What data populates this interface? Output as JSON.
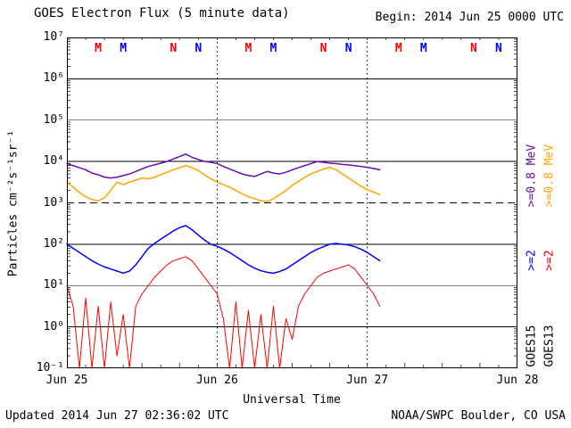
{
  "header": {
    "title": "GOES Electron Flux (5 minute data)",
    "begin_label": "Begin: 2014 Jun 25 0000 UTC"
  },
  "footer": {
    "updated": "Updated 2014 Jun 27 02:36:02 UTC",
    "credit": "NOAA/SWPC Boulder, CO USA"
  },
  "axes": {
    "y_label": "Particles cm⁻²s⁻¹sr⁻¹",
    "x_label": "Universal Time"
  },
  "colors": {
    "goes15_e08": "#6a0dad",
    "goes13_e08": "#ffa500",
    "goes15_e2": "#0000ff",
    "goes13_e2": "#ff0000",
    "axis": "#000000"
  },
  "chart_data": {
    "type": "line",
    "title": "GOES Electron Flux (5 minute data)",
    "begin": "2014 Jun 25 0000 UTC",
    "updated": "2014 Jun 27 02:36:02 UTC",
    "xlabel": "Universal Time",
    "ylabel": "Particles cm⁻²s⁻¹sr⁻¹",
    "y_scale": "log10",
    "x_hours_range": [
      0,
      72
    ],
    "ylog_range": [
      -1,
      7
    ],
    "grid": "decade horizontal solid lines; dashed alert threshold at 1e3; dotted vertical day boundaries",
    "legend_position": "right margin, rotated",
    "y_tick_exponents": [
      -1,
      0,
      1,
      2,
      3,
      4,
      5,
      6,
      7
    ],
    "y_tick_labels": [
      "10⁻¹",
      "10⁰",
      "10¹",
      "10²",
      "10³",
      "10⁴",
      "10⁵",
      "10⁶",
      "10⁷"
    ],
    "x_ticks": [
      {
        "hour": 0,
        "label": "Jun 25"
      },
      {
        "hour": 24,
        "label": "Jun 26"
      },
      {
        "hour": 48,
        "label": "Jun 27"
      },
      {
        "hour": 72,
        "label": "Jun 28"
      }
    ],
    "threshold_log": 3,
    "day_boundaries_hours": [
      24,
      48
    ],
    "x_hours": [
      0,
      1,
      2,
      3,
      4,
      5,
      6,
      7,
      8,
      9,
      10,
      11,
      12,
      13,
      14,
      15,
      16,
      17,
      18,
      19,
      20,
      21,
      22,
      23,
      24,
      25,
      26,
      27,
      28,
      29,
      30,
      31,
      32,
      33,
      34,
      35,
      36,
      37,
      38,
      39,
      40,
      41,
      42,
      43,
      44,
      45,
      46,
      47,
      48,
      49,
      50
    ],
    "series": [
      {
        "key": "goes15-ge08mev",
        "name": "GOES15 >=0.8 MeV",
        "color": "#6a0dad",
        "width": 1.5,
        "log_values": [
          3.95,
          3.9,
          3.85,
          3.8,
          3.72,
          3.68,
          3.62,
          3.6,
          3.62,
          3.66,
          3.7,
          3.76,
          3.82,
          3.88,
          3.92,
          3.96,
          4.0,
          4.06,
          4.12,
          4.18,
          4.1,
          4.05,
          4.0,
          3.98,
          3.95,
          3.88,
          3.82,
          3.76,
          3.7,
          3.66,
          3.64,
          3.7,
          3.76,
          3.72,
          3.7,
          3.74,
          3.8,
          3.85,
          3.9,
          3.95,
          4.0,
          3.98,
          3.96,
          3.95,
          3.93,
          3.92,
          3.9,
          3.88,
          3.86,
          3.83,
          3.8
        ]
      },
      {
        "key": "goes13-ge08mev",
        "name": "GOES13 >=0.8 MeV",
        "color": "#ffa500",
        "width": 1.5,
        "log_values": [
          3.5,
          3.38,
          3.25,
          3.15,
          3.08,
          3.05,
          3.12,
          3.3,
          3.5,
          3.44,
          3.5,
          3.55,
          3.6,
          3.58,
          3.62,
          3.68,
          3.74,
          3.8,
          3.85,
          3.9,
          3.85,
          3.78,
          3.68,
          3.58,
          3.5,
          3.44,
          3.38,
          3.3,
          3.22,
          3.15,
          3.1,
          3.05,
          3.03,
          3.1,
          3.2,
          3.3,
          3.42,
          3.52,
          3.62,
          3.7,
          3.76,
          3.82,
          3.86,
          3.8,
          3.7,
          3.6,
          3.5,
          3.4,
          3.32,
          3.26,
          3.2
        ]
      },
      {
        "key": "goes15-ge2mev",
        "name": "GOES15 >=2 MeV",
        "color": "#0000ff",
        "width": 1.5,
        "log_values": [
          2.0,
          1.9,
          1.8,
          1.7,
          1.6,
          1.52,
          1.45,
          1.4,
          1.35,
          1.3,
          1.35,
          1.5,
          1.7,
          1.9,
          2.02,
          2.12,
          2.22,
          2.32,
          2.4,
          2.45,
          2.35,
          2.22,
          2.1,
          2.0,
          1.95,
          1.88,
          1.8,
          1.7,
          1.6,
          1.5,
          1.42,
          1.36,
          1.32,
          1.3,
          1.34,
          1.4,
          1.5,
          1.6,
          1.7,
          1.8,
          1.88,
          1.94,
          2.0,
          2.02,
          2.0,
          1.98,
          1.94,
          1.88,
          1.8,
          1.7,
          1.6
        ]
      },
      {
        "key": "goes13-ge2mev",
        "name": "GOES13 >=2 MeV",
        "color": "#ff0000",
        "width": 1.0,
        "log_values": [
          1.0,
          0.5,
          -1.0,
          0.7,
          -1.0,
          0.5,
          -1.0,
          0.6,
          -0.7,
          0.3,
          -1.0,
          0.5,
          0.8,
          1.0,
          1.2,
          1.35,
          1.5,
          1.6,
          1.65,
          1.7,
          1.6,
          1.4,
          1.2,
          1.0,
          0.8,
          0.2,
          -1.0,
          0.6,
          -1.0,
          0.4,
          -1.0,
          0.3,
          -1.0,
          0.5,
          -1.0,
          0.2,
          -0.3,
          0.5,
          0.8,
          1.0,
          1.2,
          1.3,
          1.35,
          1.4,
          1.45,
          1.5,
          1.4,
          1.2,
          1.0,
          0.8,
          0.5
        ]
      }
    ],
    "markers": [
      {
        "hour": 5,
        "label": "M",
        "satellite": "GOES13",
        "color": "#ff0000"
      },
      {
        "hour": 9,
        "label": "M",
        "satellite": "GOES15",
        "color": "#0000ff"
      },
      {
        "hour": 17,
        "label": "N",
        "satellite": "GOES13",
        "color": "#ff0000"
      },
      {
        "hour": 21,
        "label": "N",
        "satellite": "GOES15",
        "color": "#0000ff"
      },
      {
        "hour": 29,
        "label": "M",
        "satellite": "GOES13",
        "color": "#ff0000"
      },
      {
        "hour": 33,
        "label": "M",
        "satellite": "GOES15",
        "color": "#0000ff"
      },
      {
        "hour": 41,
        "label": "N",
        "satellite": "GOES13",
        "color": "#ff0000"
      },
      {
        "hour": 45,
        "label": "N",
        "satellite": "GOES15",
        "color": "#0000ff"
      },
      {
        "hour": 53,
        "label": "M",
        "satellite": "GOES13",
        "color": "#ff0000"
      },
      {
        "hour": 57,
        "label": "M",
        "satellite": "GOES15",
        "color": "#0000ff"
      },
      {
        "hour": 65,
        "label": "N",
        "satellite": "GOES13",
        "color": "#ff0000"
      },
      {
        "hour": 69,
        "label": "N",
        "satellite": "GOES15",
        "color": "#0000ff"
      }
    ],
    "legend": {
      "columns": [
        {
          "satellite": "GOES15",
          "entries": [
            {
              "text": ">=0.8 MeV",
              "color": "#6a0dad"
            },
            {
              "text": ">=2",
              "color": "#0000ff"
            },
            {
              "text": "GOES15",
              "color": "#000000"
            }
          ]
        },
        {
          "satellite": "GOES13",
          "entries": [
            {
              "text": ">=0.8 MeV",
              "color": "#ffa500"
            },
            {
              "text": ">=2",
              "color": "#ff0000"
            },
            {
              "text": "GOES13",
              "color": "#000000"
            }
          ]
        }
      ]
    }
  }
}
